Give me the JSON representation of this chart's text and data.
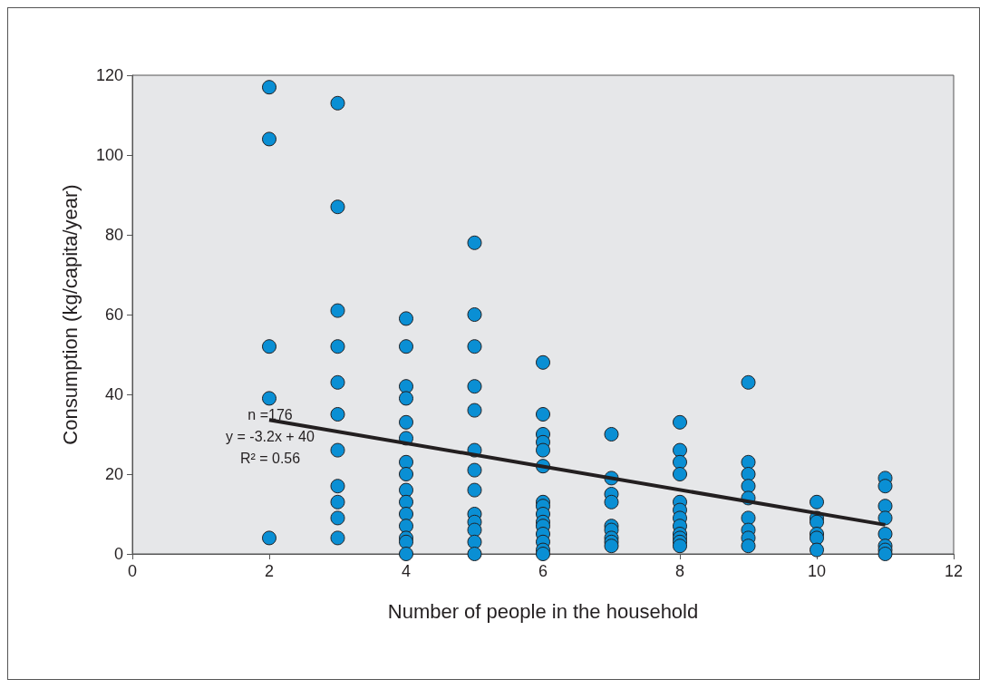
{
  "chart_data": {
    "type": "scatter",
    "xlabel": "Number of people in the household",
    "ylabel": "Consumption (kg/capita/year)",
    "xlim": [
      0,
      12
    ],
    "xticks": [
      0,
      2,
      4,
      6,
      8,
      10,
      12
    ],
    "ylim": [
      0,
      120
    ],
    "yticks": [
      0,
      20,
      40,
      60,
      80,
      100,
      120
    ],
    "grid": false,
    "marker": "circle",
    "annotations": [
      "n =176",
      "y = -3.2x + 40",
      "R² = 0.56"
    ],
    "series": [
      {
        "color": "#0a8fd4",
        "x": [
          2,
          2,
          2,
          2,
          2,
          3,
          3,
          3,
          3,
          3,
          3,
          3,
          3,
          3,
          3,
          3,
          4,
          4,
          4,
          4,
          4,
          4,
          4,
          4,
          4,
          4,
          4,
          4,
          4,
          4,
          4,
          5,
          5,
          5,
          5,
          5,
          5,
          5,
          5,
          5,
          5,
          5,
          5,
          5,
          6,
          6,
          6,
          6,
          6,
          6,
          6,
          6,
          6,
          6,
          6,
          6,
          6,
          6,
          6,
          7,
          7,
          7,
          7,
          7,
          7,
          7,
          7,
          7,
          8,
          8,
          8,
          8,
          8,
          8,
          8,
          8,
          8,
          8,
          8,
          8,
          9,
          9,
          9,
          9,
          9,
          9,
          9,
          9,
          9,
          10,
          10,
          10,
          10,
          10,
          10,
          11,
          11,
          11,
          11,
          11,
          11,
          11,
          11
        ],
        "values": [
          117,
          104,
          52,
          39,
          4,
          113,
          87,
          61,
          52,
          43,
          35,
          26,
          17,
          13,
          9,
          4,
          59,
          52,
          42,
          39,
          33,
          29,
          23,
          20,
          16,
          13,
          10,
          7,
          4,
          3,
          0,
          78,
          60,
          52,
          42,
          36,
          26,
          21,
          16,
          10,
          8,
          6,
          3,
          0,
          48,
          35,
          30,
          28,
          26,
          22,
          13,
          12,
          10,
          8,
          7,
          5,
          3,
          1,
          0,
          30,
          19,
          15,
          13,
          7,
          6,
          4,
          3,
          2,
          33,
          26,
          23,
          20,
          13,
          11,
          9,
          7,
          5,
          4,
          3,
          2,
          43,
          23,
          20,
          17,
          14,
          9,
          6,
          4,
          2,
          13,
          9,
          8,
          5,
          4,
          1,
          19,
          17,
          12,
          9,
          5,
          2,
          1,
          0
        ]
      },
      {
        "type": "line",
        "color": "#231f20",
        "marker": "none",
        "x": [
          2,
          11
        ],
        "values": [
          33.6,
          7.3
        ]
      }
    ]
  }
}
